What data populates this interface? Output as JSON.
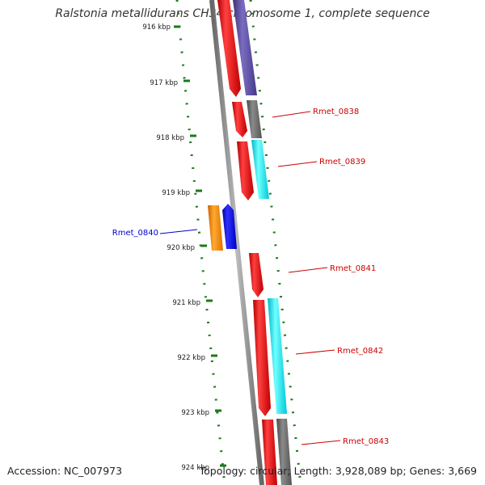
{
  "title": "Ralstonia metallidurans CH34 chromosome 1, complete sequence",
  "accession": "Accession: NC_007973",
  "summary": "Topology: circular; Length: 3,928,089 bp; Genes: 3,669",
  "ruler": {
    "ticks": [
      "916 kbp",
      "917 kbp",
      "918 kbp",
      "919 kbp",
      "920 kbp",
      "921 kbp",
      "922 kbp",
      "923 kbp",
      "924 kbp"
    ]
  },
  "genes": [
    {
      "label": "Rmet_0838",
      "color": "#cc0000"
    },
    {
      "label": "Rmet_0839",
      "color": "#cc0000"
    },
    {
      "label": "Rmet_0840",
      "color": "#0000cc"
    },
    {
      "label": "Rmet_0841",
      "color": "#cc0000"
    },
    {
      "label": "Rmet_0842",
      "color": "#cc0000"
    },
    {
      "label": "Rmet_0843",
      "color": "#cc0000"
    }
  ],
  "colors": {
    "backbone": "#888888",
    "cds_forward": "#ff0000",
    "cds_reverse": "#0000ff",
    "cog_purple": "#5a4a9a",
    "cog_gray": "#6e6e6e",
    "cog_cyan": "#00e5ee",
    "cog_orange": "#ff8c00",
    "gc_dots": "#1a7a1a",
    "ruler_ticks": "#1a7a1a"
  }
}
